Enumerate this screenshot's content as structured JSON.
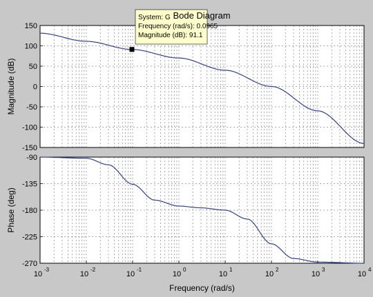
{
  "chart_data": {
    "type": "line",
    "title": "Bode Diagram",
    "xlabel": "Frequency  (rad/s)",
    "x_scale": "log",
    "xlim": [
      0.001,
      10000
    ],
    "x_ticks": [
      {
        "base": "10",
        "exp": "-3"
      },
      {
        "base": "10",
        "exp": "-2"
      },
      {
        "base": "10",
        "exp": "-1"
      },
      {
        "base": "10",
        "exp": "0"
      },
      {
        "base": "10",
        "exp": "1"
      },
      {
        "base": "10",
        "exp": "2"
      },
      {
        "base": "10",
        "exp": "3"
      },
      {
        "base": "10",
        "exp": "4"
      }
    ],
    "grid": true,
    "line_color": "#2f3f9a",
    "panels": [
      {
        "ylabel": "Magnitude (dB)",
        "ylim": [
          -150,
          150
        ],
        "y_ticks": [
          "150",
          "100",
          "50",
          "0",
          "-50",
          "-100",
          "-150"
        ],
        "series": [
          {
            "x": [
              0.001,
              0.01,
              0.0965,
              1,
              10,
              100,
              1000,
              10000
            ],
            "y": [
              131.1,
              111.1,
              91.1,
              70.0,
              40.0,
              0.0,
              -60.0,
              -140.0
            ]
          }
        ]
      },
      {
        "ylabel": "Phase (deg)",
        "ylim": [
          -270,
          -90
        ],
        "y_ticks": [
          "-90",
          "-135",
          "-180",
          "-225",
          "-270"
        ],
        "series": [
          {
            "x": [
              0.001,
              0.01,
              0.03,
              0.1,
              0.3,
              1,
              3,
              10,
              30,
              100,
              300,
              1000,
              10000
            ],
            "y": [
              -90,
              -92,
              -103,
              -136,
              -163,
              -173,
              -176,
              -180,
              -195,
              -237,
              -262,
              -268,
              -270
            ]
          }
        ]
      }
    ],
    "datatip": {
      "lines": [
        "System: G",
        "Frequency (rad/s): 0.0965",
        "Magnitude (dB): 91.1"
      ],
      "x": 0.0965,
      "y": 91.1
    }
  }
}
